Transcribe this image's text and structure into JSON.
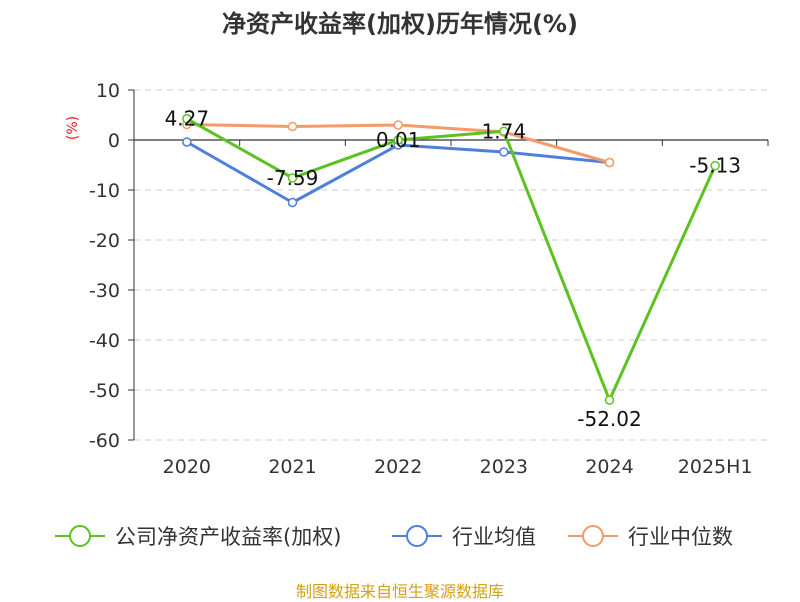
{
  "title": "净资产收益率(加权)历年情况(%)",
  "source": "制图数据来自恒生聚源数据库",
  "colors": {
    "company": "#5cc221",
    "industry_avg": "#4e7fdb",
    "industry_median": "#f49a6b",
    "grid": "#cccccc",
    "axis": "#333333",
    "unit": "#e02020",
    "source": "#d4a017"
  },
  "chart_data": {
    "type": "line",
    "title": "净资产收益率(加权)历年情况(%)",
    "ylabel": "(%)",
    "xlabel": "",
    "categories": [
      "2020",
      "2021",
      "2022",
      "2023",
      "2024",
      "2025H1"
    ],
    "ylim": [
      -60,
      10
    ],
    "yticks": [
      10,
      0,
      -10,
      -20,
      -30,
      -40,
      -50,
      -60
    ],
    "grid": "horizontal-dashed",
    "legend": "bottom",
    "series": [
      {
        "name": "公司净资产收益率(加权)",
        "color_key": "company",
        "values": [
          4.27,
          -7.59,
          0.01,
          1.74,
          -52.02,
          -5.13
        ],
        "labels": [
          "4.27",
          "-7.59",
          "0.01",
          "1.74",
          "-52.02",
          "-5.13"
        ]
      },
      {
        "name": "行业均值",
        "color_key": "industry_avg",
        "values": [
          -0.4,
          -12.5,
          -1.0,
          -2.4,
          -4.5,
          null
        ]
      },
      {
        "name": "行业中位数",
        "color_key": "industry_median",
        "values": [
          3.1,
          2.7,
          3.0,
          1.6,
          -4.5,
          null
        ]
      }
    ]
  }
}
